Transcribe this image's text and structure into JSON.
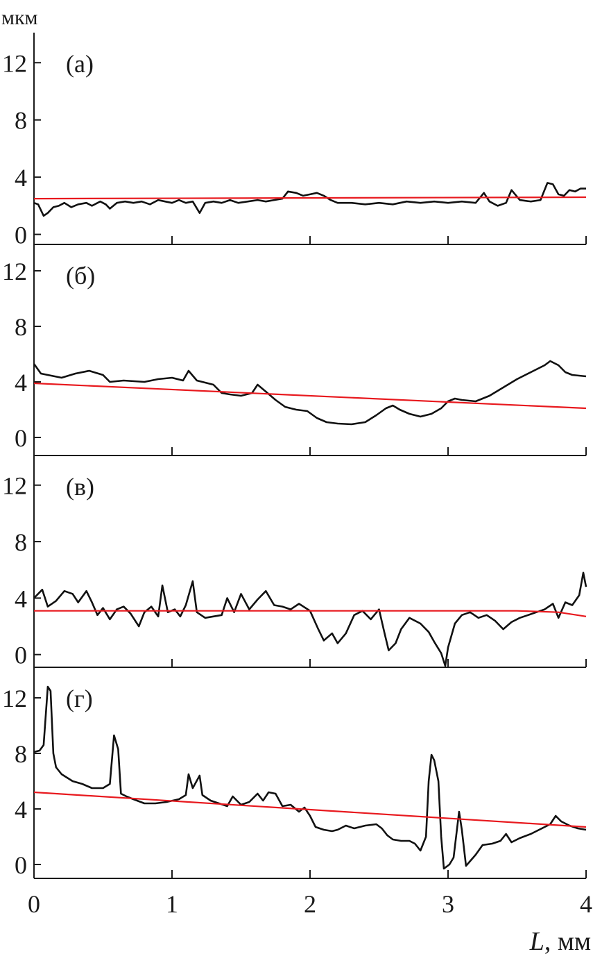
{
  "chart_data": {
    "type": "line",
    "y_unit_label": "мкм",
    "x_axis_label": "L, мм",
    "x_ticks": [
      0,
      1,
      2,
      3,
      4
    ],
    "xlim": [
      0,
      4
    ],
    "y_ticks": [
      0,
      4,
      8,
      12
    ],
    "grid": false,
    "colors": {
      "profile": "#111111",
      "fit": "#e8191e"
    },
    "panels": [
      {
        "panel_label": "(а)",
        "ylim": [
          -0.7,
          14.1
        ],
        "profile": [
          [
            0,
            2.2
          ],
          [
            0.03,
            2.1
          ],
          [
            0.07,
            1.3
          ],
          [
            0.1,
            1.5
          ],
          [
            0.14,
            1.9
          ],
          [
            0.18,
            2.0
          ],
          [
            0.22,
            2.2
          ],
          [
            0.27,
            1.9
          ],
          [
            0.32,
            2.1
          ],
          [
            0.38,
            2.2
          ],
          [
            0.42,
            2.0
          ],
          [
            0.48,
            2.3
          ],
          [
            0.52,
            2.1
          ],
          [
            0.55,
            1.8
          ],
          [
            0.6,
            2.2
          ],
          [
            0.66,
            2.3
          ],
          [
            0.72,
            2.2
          ],
          [
            0.78,
            2.3
          ],
          [
            0.84,
            2.1
          ],
          [
            0.9,
            2.4
          ],
          [
            0.95,
            2.3
          ],
          [
            1.0,
            2.2
          ],
          [
            1.05,
            2.4
          ],
          [
            1.1,
            2.2
          ],
          [
            1.15,
            2.3
          ],
          [
            1.2,
            1.5
          ],
          [
            1.24,
            2.2
          ],
          [
            1.3,
            2.3
          ],
          [
            1.36,
            2.2
          ],
          [
            1.42,
            2.4
          ],
          [
            1.48,
            2.2
          ],
          [
            1.55,
            2.3
          ],
          [
            1.62,
            2.4
          ],
          [
            1.68,
            2.3
          ],
          [
            1.74,
            2.4
          ],
          [
            1.8,
            2.5
          ],
          [
            1.84,
            3.0
          ],
          [
            1.9,
            2.9
          ],
          [
            1.95,
            2.7
          ],
          [
            2.0,
            2.8
          ],
          [
            2.05,
            2.9
          ],
          [
            2.1,
            2.7
          ],
          [
            2.15,
            2.4
          ],
          [
            2.2,
            2.2
          ],
          [
            2.3,
            2.2
          ],
          [
            2.4,
            2.1
          ],
          [
            2.5,
            2.2
          ],
          [
            2.6,
            2.1
          ],
          [
            2.7,
            2.3
          ],
          [
            2.8,
            2.2
          ],
          [
            2.9,
            2.3
          ],
          [
            3.0,
            2.2
          ],
          [
            3.1,
            2.3
          ],
          [
            3.2,
            2.2
          ],
          [
            3.26,
            2.9
          ],
          [
            3.3,
            2.3
          ],
          [
            3.36,
            2.0
          ],
          [
            3.42,
            2.2
          ],
          [
            3.46,
            3.1
          ],
          [
            3.52,
            2.4
          ],
          [
            3.6,
            2.3
          ],
          [
            3.67,
            2.4
          ],
          [
            3.72,
            3.6
          ],
          [
            3.76,
            3.5
          ],
          [
            3.8,
            2.8
          ],
          [
            3.84,
            2.7
          ],
          [
            3.88,
            3.1
          ],
          [
            3.92,
            3.0
          ],
          [
            3.96,
            3.2
          ],
          [
            4.0,
            3.2
          ]
        ],
        "fit": [
          [
            0,
            2.5
          ],
          [
            4,
            2.6
          ]
        ]
      },
      {
        "panel_label": "(б)",
        "ylim": [
          -1.3,
          13.9
        ],
        "profile": [
          [
            0,
            5.3
          ],
          [
            0.05,
            4.6
          ],
          [
            0.1,
            4.5
          ],
          [
            0.2,
            4.3
          ],
          [
            0.3,
            4.6
          ],
          [
            0.4,
            4.8
          ],
          [
            0.5,
            4.5
          ],
          [
            0.55,
            4.0
          ],
          [
            0.65,
            4.1
          ],
          [
            0.8,
            4.0
          ],
          [
            0.9,
            4.2
          ],
          [
            1.0,
            4.3
          ],
          [
            1.08,
            4.1
          ],
          [
            1.12,
            4.8
          ],
          [
            1.18,
            4.1
          ],
          [
            1.3,
            3.8
          ],
          [
            1.36,
            3.2
          ],
          [
            1.42,
            3.1
          ],
          [
            1.5,
            3.0
          ],
          [
            1.58,
            3.2
          ],
          [
            1.62,
            3.8
          ],
          [
            1.68,
            3.3
          ],
          [
            1.75,
            2.7
          ],
          [
            1.82,
            2.2
          ],
          [
            1.9,
            2.0
          ],
          [
            1.98,
            1.9
          ],
          [
            2.05,
            1.4
          ],
          [
            2.12,
            1.1
          ],
          [
            2.2,
            1.0
          ],
          [
            2.3,
            0.95
          ],
          [
            2.4,
            1.1
          ],
          [
            2.48,
            1.6
          ],
          [
            2.55,
            2.1
          ],
          [
            2.6,
            2.3
          ],
          [
            2.65,
            2.0
          ],
          [
            2.72,
            1.7
          ],
          [
            2.8,
            1.5
          ],
          [
            2.88,
            1.7
          ],
          [
            2.95,
            2.1
          ],
          [
            3.0,
            2.6
          ],
          [
            3.05,
            2.8
          ],
          [
            3.1,
            2.7
          ],
          [
            3.2,
            2.6
          ],
          [
            3.3,
            3.0
          ],
          [
            3.4,
            3.6
          ],
          [
            3.5,
            4.2
          ],
          [
            3.6,
            4.7
          ],
          [
            3.7,
            5.2
          ],
          [
            3.74,
            5.5
          ],
          [
            3.8,
            5.2
          ],
          [
            3.85,
            4.7
          ],
          [
            3.9,
            4.5
          ],
          [
            4.0,
            4.4
          ]
        ],
        "fit": [
          [
            0,
            3.9
          ],
          [
            4,
            2.1
          ]
        ]
      },
      {
        "panel_label": "(в)",
        "ylim": [
          -0.9,
          14.1
        ],
        "profile": [
          [
            0,
            4.0
          ],
          [
            0.06,
            4.6
          ],
          [
            0.1,
            3.4
          ],
          [
            0.16,
            3.8
          ],
          [
            0.22,
            4.5
          ],
          [
            0.28,
            4.3
          ],
          [
            0.32,
            3.7
          ],
          [
            0.38,
            4.5
          ],
          [
            0.42,
            3.7
          ],
          [
            0.46,
            2.8
          ],
          [
            0.5,
            3.3
          ],
          [
            0.55,
            2.5
          ],
          [
            0.6,
            3.2
          ],
          [
            0.65,
            3.4
          ],
          [
            0.7,
            2.9
          ],
          [
            0.76,
            2.0
          ],
          [
            0.8,
            3.0
          ],
          [
            0.85,
            3.4
          ],
          [
            0.9,
            2.7
          ],
          [
            0.93,
            4.9
          ],
          [
            0.97,
            3.0
          ],
          [
            1.02,
            3.2
          ],
          [
            1.06,
            2.7
          ],
          [
            1.1,
            3.5
          ],
          [
            1.15,
            5.2
          ],
          [
            1.18,
            3.0
          ],
          [
            1.24,
            2.6
          ],
          [
            1.3,
            2.7
          ],
          [
            1.36,
            2.8
          ],
          [
            1.4,
            4.0
          ],
          [
            1.45,
            3.0
          ],
          [
            1.5,
            4.3
          ],
          [
            1.56,
            3.2
          ],
          [
            1.62,
            3.9
          ],
          [
            1.68,
            4.5
          ],
          [
            1.74,
            3.5
          ],
          [
            1.8,
            3.4
          ],
          [
            1.86,
            3.2
          ],
          [
            1.92,
            3.6
          ],
          [
            2.0,
            3.1
          ],
          [
            2.06,
            1.8
          ],
          [
            2.1,
            1.0
          ],
          [
            2.16,
            1.5
          ],
          [
            2.2,
            0.8
          ],
          [
            2.26,
            1.5
          ],
          [
            2.32,
            2.8
          ],
          [
            2.38,
            3.1
          ],
          [
            2.44,
            2.5
          ],
          [
            2.5,
            3.2
          ],
          [
            2.54,
            1.5
          ],
          [
            2.57,
            0.3
          ],
          [
            2.62,
            0.8
          ],
          [
            2.66,
            1.8
          ],
          [
            2.72,
            2.6
          ],
          [
            2.8,
            2.2
          ],
          [
            2.86,
            1.6
          ],
          [
            2.9,
            0.9
          ],
          [
            2.95,
            0.1
          ],
          [
            2.98,
            -0.8
          ],
          [
            3.0,
            0.5
          ],
          [
            3.05,
            2.2
          ],
          [
            3.1,
            2.8
          ],
          [
            3.16,
            3.0
          ],
          [
            3.22,
            2.6
          ],
          [
            3.28,
            2.8
          ],
          [
            3.34,
            2.4
          ],
          [
            3.4,
            1.8
          ],
          [
            3.46,
            2.3
          ],
          [
            3.52,
            2.6
          ],
          [
            3.58,
            2.8
          ],
          [
            3.64,
            3.0
          ],
          [
            3.7,
            3.2
          ],
          [
            3.76,
            3.6
          ],
          [
            3.8,
            2.6
          ],
          [
            3.85,
            3.7
          ],
          [
            3.9,
            3.5
          ],
          [
            3.95,
            4.2
          ],
          [
            3.98,
            5.8
          ],
          [
            4.0,
            4.8
          ]
        ],
        "fit": [
          [
            0,
            3.1
          ],
          [
            3.5,
            3.1
          ],
          [
            3.8,
            3.0
          ],
          [
            4,
            2.7
          ]
        ]
      },
      {
        "panel_label": "(г)",
        "ylim": [
          -1.0,
          14.2
        ],
        "profile": [
          [
            0,
            8.1
          ],
          [
            0.04,
            8.2
          ],
          [
            0.07,
            8.6
          ],
          [
            0.1,
            12.8
          ],
          [
            0.12,
            12.5
          ],
          [
            0.14,
            8.0
          ],
          [
            0.16,
            7.0
          ],
          [
            0.2,
            6.5
          ],
          [
            0.28,
            6.0
          ],
          [
            0.35,
            5.8
          ],
          [
            0.42,
            5.5
          ],
          [
            0.5,
            5.5
          ],
          [
            0.55,
            5.8
          ],
          [
            0.58,
            9.3
          ],
          [
            0.61,
            8.3
          ],
          [
            0.63,
            5.1
          ],
          [
            0.67,
            4.9
          ],
          [
            0.72,
            4.7
          ],
          [
            0.8,
            4.4
          ],
          [
            0.88,
            4.4
          ],
          [
            0.96,
            4.5
          ],
          [
            1.05,
            4.7
          ],
          [
            1.1,
            5.0
          ],
          [
            1.12,
            6.5
          ],
          [
            1.15,
            5.5
          ],
          [
            1.2,
            6.4
          ],
          [
            1.22,
            5.0
          ],
          [
            1.28,
            4.6
          ],
          [
            1.34,
            4.4
          ],
          [
            1.4,
            4.2
          ],
          [
            1.44,
            4.9
          ],
          [
            1.5,
            4.3
          ],
          [
            1.56,
            4.5
          ],
          [
            1.62,
            5.1
          ],
          [
            1.66,
            4.6
          ],
          [
            1.7,
            5.2
          ],
          [
            1.75,
            5.1
          ],
          [
            1.8,
            4.2
          ],
          [
            1.86,
            4.3
          ],
          [
            1.92,
            3.8
          ],
          [
            1.96,
            4.1
          ],
          [
            2.0,
            3.5
          ],
          [
            2.04,
            2.7
          ],
          [
            2.1,
            2.5
          ],
          [
            2.16,
            2.4
          ],
          [
            2.2,
            2.5
          ],
          [
            2.26,
            2.8
          ],
          [
            2.32,
            2.6
          ],
          [
            2.4,
            2.8
          ],
          [
            2.48,
            2.9
          ],
          [
            2.52,
            2.6
          ],
          [
            2.56,
            2.1
          ],
          [
            2.6,
            1.8
          ],
          [
            2.66,
            1.7
          ],
          [
            2.72,
            1.7
          ],
          [
            2.76,
            1.5
          ],
          [
            2.8,
            1.0
          ],
          [
            2.84,
            2.0
          ],
          [
            2.86,
            6.0
          ],
          [
            2.88,
            7.9
          ],
          [
            2.9,
            7.5
          ],
          [
            2.93,
            6.0
          ],
          [
            2.95,
            2.0
          ],
          [
            2.97,
            -0.3
          ],
          [
            3.01,
            0.0
          ],
          [
            3.04,
            0.5
          ],
          [
            3.08,
            3.8
          ],
          [
            3.1,
            2.5
          ],
          [
            3.13,
            -0.1
          ],
          [
            3.2,
            0.7
          ],
          [
            3.25,
            1.4
          ],
          [
            3.32,
            1.5
          ],
          [
            3.38,
            1.7
          ],
          [
            3.42,
            2.2
          ],
          [
            3.46,
            1.6
          ],
          [
            3.52,
            1.9
          ],
          [
            3.6,
            2.2
          ],
          [
            3.68,
            2.6
          ],
          [
            3.74,
            2.9
          ],
          [
            3.78,
            3.5
          ],
          [
            3.82,
            3.1
          ],
          [
            3.88,
            2.8
          ],
          [
            3.94,
            2.6
          ],
          [
            4.0,
            2.5
          ]
        ],
        "fit": [
          [
            0,
            5.2
          ],
          [
            4,
            2.7
          ]
        ]
      }
    ]
  }
}
